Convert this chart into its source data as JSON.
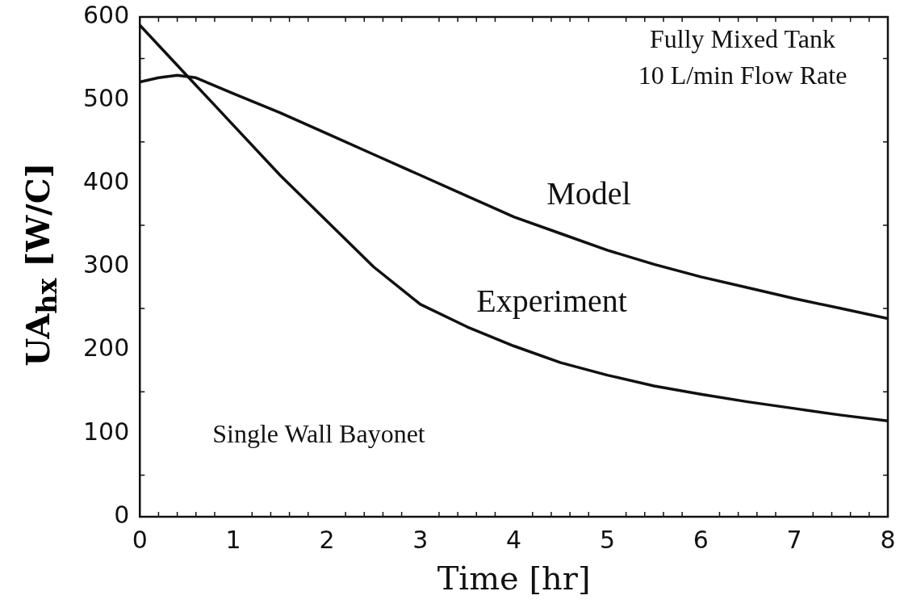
{
  "chart_data": {
    "type": "line",
    "xlabel": "Time [hr]",
    "ylabel": "UA$_{hx}$ [W/C]",
    "annotations": [
      "Fully Mixed Tank",
      "10 L/min Flow Rate",
      "Single Wall Bayonet"
    ],
    "series": [
      {
        "name": "Model",
        "color": "#111111",
        "x": [
          0,
          0.2,
          0.4,
          0.6,
          1,
          1.5,
          2,
          2.5,
          3,
          3.5,
          4,
          4.5,
          5,
          5.5,
          6,
          6.5,
          7,
          7.5,
          8
        ],
        "values": [
          522,
          527,
          530,
          527,
          508,
          485,
          460,
          435,
          410,
          385,
          360,
          340,
          320,
          303,
          288,
          275,
          262,
          250,
          238
        ]
      },
      {
        "name": "Experiment",
        "color": "#111111",
        "x": [
          0,
          0.25,
          0.5,
          0.75,
          1,
          1.5,
          2,
          2.5,
          3,
          3.5,
          4,
          4.5,
          5,
          5.5,
          6,
          6.5,
          7,
          7.5,
          8
        ],
        "values": [
          590,
          560,
          530,
          500,
          470,
          410,
          355,
          300,
          255,
          228,
          205,
          185,
          170,
          157,
          147,
          138,
          130,
          122,
          115
        ]
      }
    ],
    "xlim": [
      0,
      8
    ],
    "xticks": [
      0,
      1,
      2,
      3,
      4,
      5,
      6,
      7,
      8
    ],
    "ylim": [
      0,
      600
    ],
    "yticks": [
      0,
      100,
      200,
      300,
      400,
      500,
      600
    ],
    "grid": false,
    "legend": false,
    "marker": "none",
    "line_style": "solid"
  }
}
